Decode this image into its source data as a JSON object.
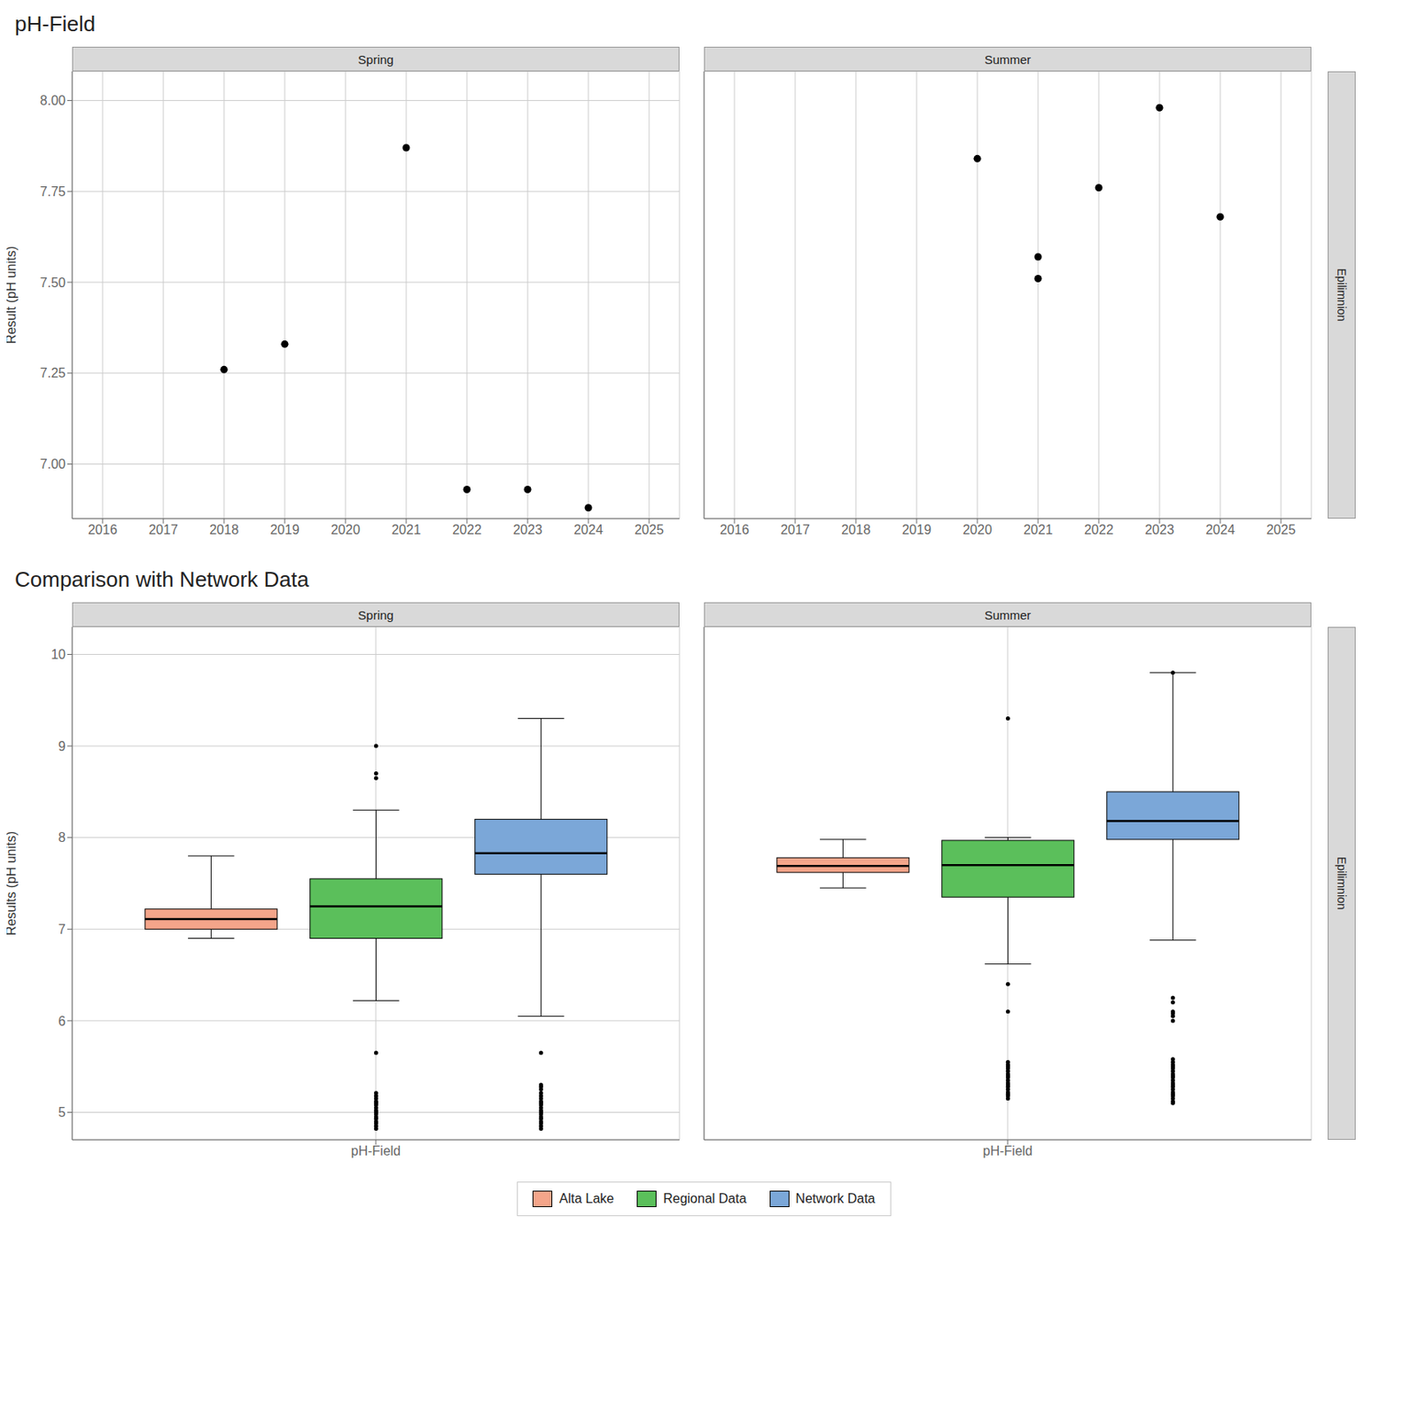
{
  "chart_data": [
    {
      "type": "scatter",
      "title": "pH-Field",
      "subtitle": "Spring",
      "x": [
        2018,
        2019,
        2021,
        2022,
        2023,
        2024
      ],
      "values": [
        7.26,
        7.33,
        7.87,
        6.93,
        6.93,
        6.88
      ],
      "color": "#000000",
      "xlim": [
        2015.5,
        2025.5
      ],
      "xticks": [
        2016,
        2017,
        2018,
        2019,
        2020,
        2021,
        2022,
        2023,
        2024,
        2025
      ],
      "ylim": [
        6.85,
        8.08
      ],
      "yticks": [
        {
          "value": 7.0,
          "label": "7.00"
        },
        7.25,
        {
          "value": 7.5,
          "label": "7.50"
        },
        7.75,
        {
          "value": 8.0,
          "label": "8.00"
        }
      ],
      "ylabel": "Result (pH units)",
      "grid": true
    },
    {
      "type": "scatter",
      "subtitle": "Summer",
      "annotations": [
        "Epilimnion"
      ],
      "x": [
        2020,
        2021,
        2021,
        2022,
        2023,
        2024
      ],
      "values": [
        7.84,
        7.51,
        7.57,
        7.76,
        7.98,
        7.68
      ],
      "color": "#000000",
      "xlim": [
        2015.5,
        2025.5
      ],
      "xticks": [
        2016,
        2017,
        2018,
        2019,
        2020,
        2021,
        2022,
        2023,
        2024,
        2025
      ],
      "ylim": [
        6.85,
        8.08
      ],
      "yticks": [
        {
          "value": 7.0,
          "label": "7.00"
        },
        7.25,
        {
          "value": 7.5,
          "label": "7.50"
        },
        7.75,
        {
          "value": 8.0,
          "label": "8.00"
        }
      ],
      "tick_labels": "x",
      "grid": true
    },
    {
      "type": "box",
      "title": "Comparison with Network Data",
      "subtitle": "Spring",
      "categories": [
        "pH-Field"
      ],
      "series": [
        {
          "name": "Alta Lake",
          "color": "#F4A58A",
          "median": 7.11,
          "q1": 7.0,
          "q3": 7.22,
          "whisker_low": 6.9,
          "whisker_high": 7.8
        },
        {
          "name": "Regional Data",
          "color": "#5BBF5B",
          "median": 7.25,
          "q1": 6.9,
          "q3": 7.55,
          "whisker_low": 6.22,
          "whisker_high": 8.3,
          "outliers": [
            4.82,
            4.85,
            4.88,
            4.9,
            4.93,
            4.95,
            4.98,
            5.0,
            5.02,
            5.05,
            5.08,
            5.1,
            5.12,
            5.15,
            5.18,
            5.21,
            5.65,
            8.65,
            8.7,
            9.0
          ]
        },
        {
          "name": "Network Data",
          "color": "#7BA7D8",
          "median": 7.83,
          "q1": 7.6,
          "q3": 8.2,
          "whisker_low": 6.05,
          "whisker_high": 9.3,
          "outliers": [
            4.82,
            4.85,
            4.88,
            4.9,
            4.93,
            4.95,
            4.98,
            5.0,
            5.02,
            5.05,
            5.08,
            5.1,
            5.12,
            5.15,
            5.18,
            5.21,
            5.25,
            5.28,
            5.3,
            5.65
          ]
        }
      ],
      "ylim": [
        4.7,
        10.3
      ],
      "yticks": [
        5,
        6,
        7,
        8,
        9,
        10
      ],
      "ylabel": "Results (pH units)",
      "grid": true
    },
    {
      "type": "box",
      "subtitle": "Summer",
      "annotations": [
        "Epilimnion"
      ],
      "categories": [
        "pH-Field"
      ],
      "series": [
        {
          "name": "Alta Lake",
          "color": "#F4A58A",
          "median": 7.69,
          "q1": 7.62,
          "q3": 7.78,
          "whisker_low": 7.45,
          "whisker_high": 7.98
        },
        {
          "name": "Regional Data",
          "color": "#5BBF5B",
          "median": 7.7,
          "q1": 7.35,
          "q3": 7.97,
          "whisker_low": 6.62,
          "whisker_high": 8.0,
          "outliers": [
            5.15,
            5.18,
            5.2,
            5.22,
            5.25,
            5.28,
            5.3,
            5.32,
            5.35,
            5.38,
            5.4,
            5.42,
            5.45,
            5.48,
            5.5,
            5.52,
            5.55,
            6.1,
            6.4,
            9.3
          ]
        },
        {
          "name": "Network Data",
          "color": "#7BA7D8",
          "median": 8.18,
          "q1": 7.98,
          "q3": 8.5,
          "whisker_low": 6.88,
          "whisker_high": 9.8,
          "outliers": [
            5.1,
            5.12,
            5.15,
            5.18,
            5.2,
            5.22,
            5.25,
            5.28,
            5.3,
            5.32,
            5.35,
            5.38,
            5.4,
            5.42,
            5.45,
            5.48,
            5.5,
            5.52,
            5.55,
            5.58,
            6.0,
            6.05,
            6.08,
            6.1,
            6.2,
            6.25,
            9.8
          ]
        }
      ],
      "ylim": [
        4.7,
        10.3
      ],
      "yticks": [
        5,
        6,
        7,
        8,
        9,
        10
      ],
      "tick_labels": "x",
      "legend": "bottom",
      "grid": true
    }
  ]
}
